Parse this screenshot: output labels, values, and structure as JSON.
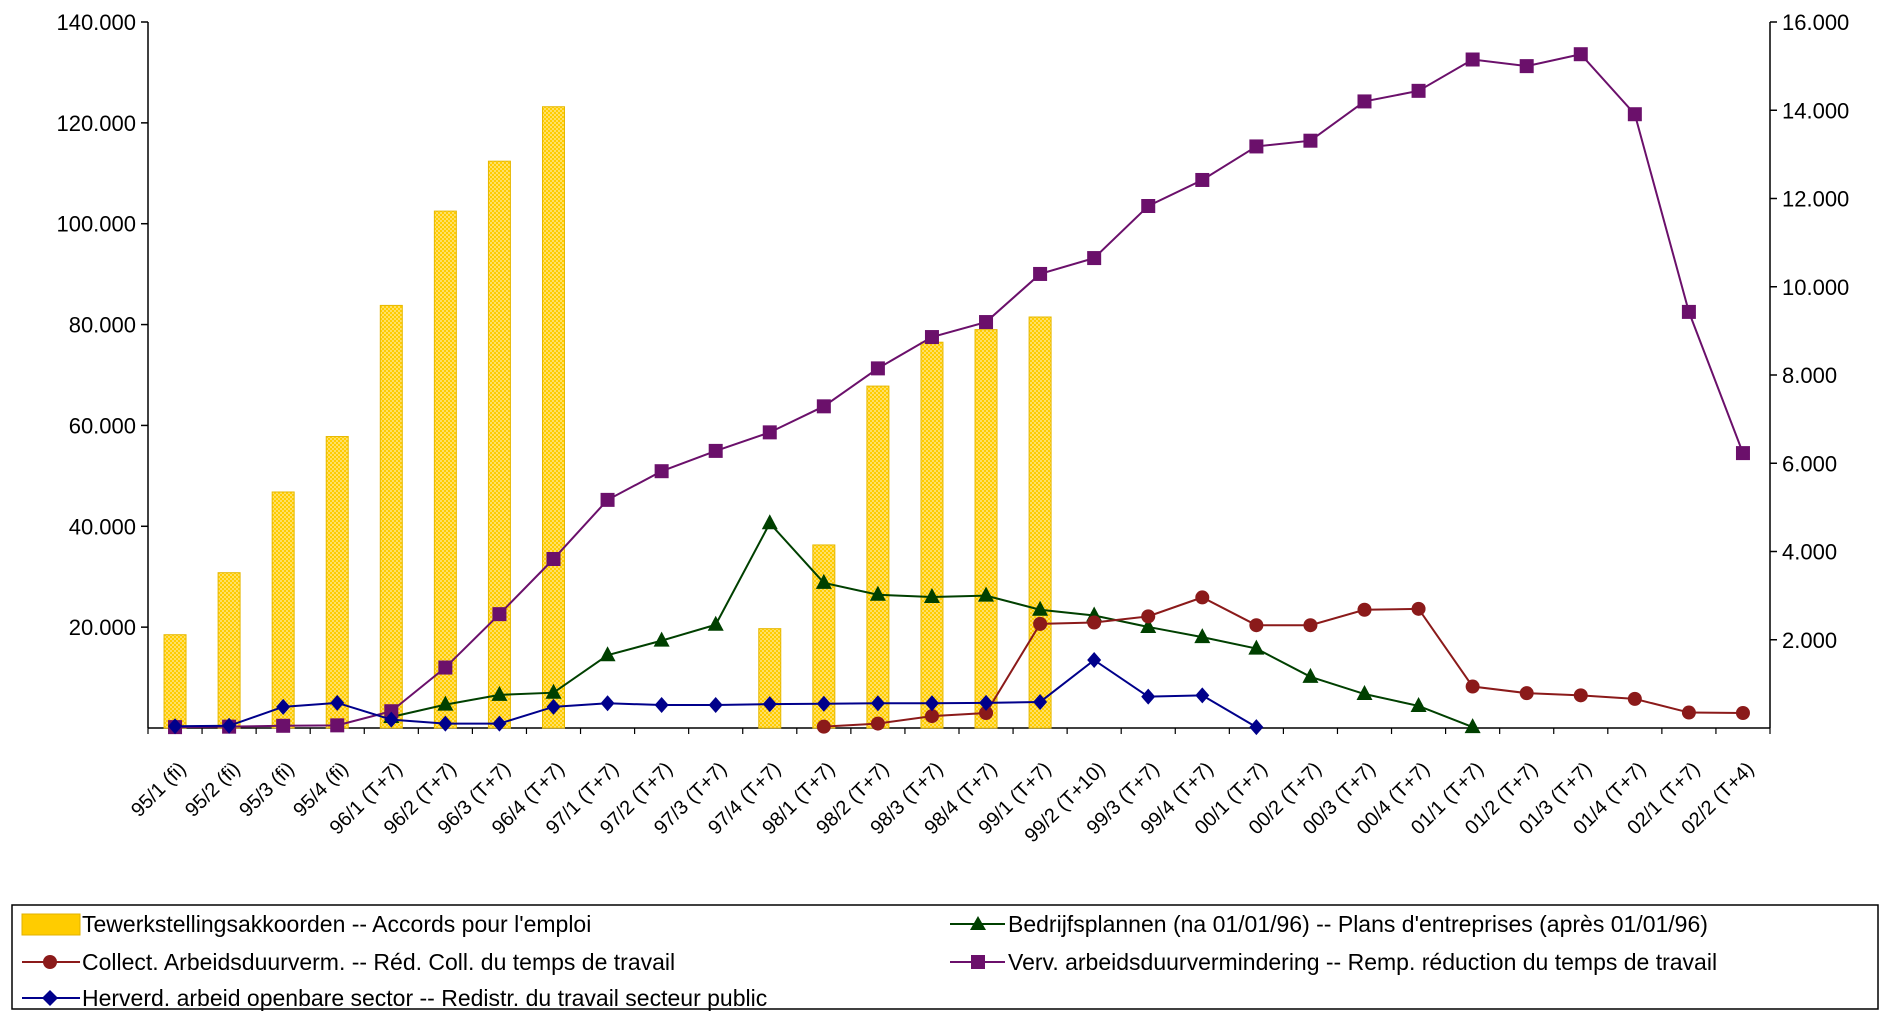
{
  "chart_data": {
    "type": "bar",
    "categories": [
      "95/1 (fi)",
      "95/2 (fi)",
      "95/3 (fi)",
      "95/4 (fi)",
      "96/1 (T+7)",
      "96/2 (T+7)",
      "96/3 (T+7)",
      "96/4 (T+7)",
      "97/1 (T+7)",
      "97/2 (T+7)",
      "97/3 (T+7)",
      "97/4 (T+7)",
      "98/1 (T+7)",
      "98/2 (T+7)",
      "98/3 (T+7)",
      "98/4 (T+7)",
      "99/1 (T+7)",
      "99/2 (T+10)",
      "99/3 (T+7)",
      "99/4 (T+7)",
      "00/1 (T+7)",
      "00/2 (T+7)",
      "00/3 (T+7)",
      "00/4 (T+7)",
      "01/1 (T+7)",
      "01/2 (T+7)",
      "01/3 (T+7)",
      "01/4 (T+7)",
      "02/1 (T+7)",
      "02/2 (T+4)"
    ],
    "left_axis": {
      "min": 0,
      "max": 140000,
      "ticks": [
        "20.000",
        "40.000",
        "60.000",
        "80.000",
        "100.000",
        "120.000",
        "140.000"
      ],
      "tick_values": [
        20000,
        40000,
        60000,
        80000,
        100000,
        120000,
        140000
      ]
    },
    "right_axis": {
      "min": 0,
      "max": 16000,
      "ticks": [
        "2.000",
        "4.000",
        "6.000",
        "8.000",
        "10.000",
        "12.000",
        "14.000",
        "16.000"
      ],
      "tick_values": [
        2000,
        4000,
        6000,
        8000,
        10000,
        12000,
        14000,
        16000
      ]
    },
    "series": [
      {
        "name": "Tewerkstellingsakkoorden  --    Accords pour l'emploi",
        "kind": "bar",
        "axis": "left",
        "color": "#FFCC00",
        "values": [
          18500,
          30800,
          46800,
          57800,
          83800,
          102500,
          112400,
          123200,
          null,
          null,
          null,
          19700,
          36300,
          67800,
          76500,
          79000,
          81500,
          null,
          null,
          null,
          null,
          null,
          null,
          null,
          null,
          null,
          null,
          null,
          null,
          null
        ]
      },
      {
        "name": "Bedrijfsplannen (na 01/01/96)  --    Plans d'entreprises (après 01/01/96)",
        "kind": "line",
        "axis": "right",
        "color": "#004000",
        "marker": "triangle",
        "values": [
          null,
          null,
          null,
          null,
          250,
          530,
          750,
          800,
          1650,
          1980,
          2340,
          4640,
          3290,
          3020,
          2970,
          3000,
          2680,
          2550,
          2290,
          2060,
          1800,
          1160,
          770,
          500,
          20,
          null,
          null,
          null,
          null,
          null
        ]
      },
      {
        "name": "Collect. Arbeidsduurverm. --  Réd. Coll. du temps de travail",
        "kind": "line",
        "axis": "right",
        "color": "#8B1A1A",
        "marker": "circle",
        "values": [
          null,
          null,
          null,
          null,
          null,
          null,
          null,
          null,
          null,
          null,
          null,
          null,
          30,
          100,
          270,
          340,
          2360,
          2390,
          2530,
          2960,
          2330,
          2330,
          2680,
          2700,
          940,
          790,
          740,
          660,
          350,
          340
        ]
      },
      {
        "name": "Verv. arbeidsduurvermindering  --    Remp. réduction du temps de travail",
        "kind": "line",
        "axis": "right",
        "color": "#6B106B",
        "marker": "square",
        "values": [
          20,
          30,
          50,
          60,
          380,
          1370,
          2580,
          3830,
          5170,
          5820,
          6280,
          6700,
          7290,
          8150,
          8860,
          9200,
          10290,
          10650,
          11830,
          12420,
          13180,
          13310,
          14200,
          14440,
          15150,
          15000,
          15270,
          13910,
          9430,
          6230
        ]
      },
      {
        "name": "Herverd. arbeid openbare sector  --    Redistr. du travail secteur public",
        "kind": "line",
        "axis": "right",
        "color": "#00008B",
        "marker": "diamond",
        "values": [
          40,
          50,
          480,
          570,
          190,
          100,
          100,
          480,
          560,
          520,
          520,
          540,
          550,
          560,
          560,
          570,
          590,
          1540,
          710,
          740,
          20,
          null,
          null,
          null,
          null,
          null,
          null,
          null,
          null,
          null
        ]
      }
    ]
  }
}
